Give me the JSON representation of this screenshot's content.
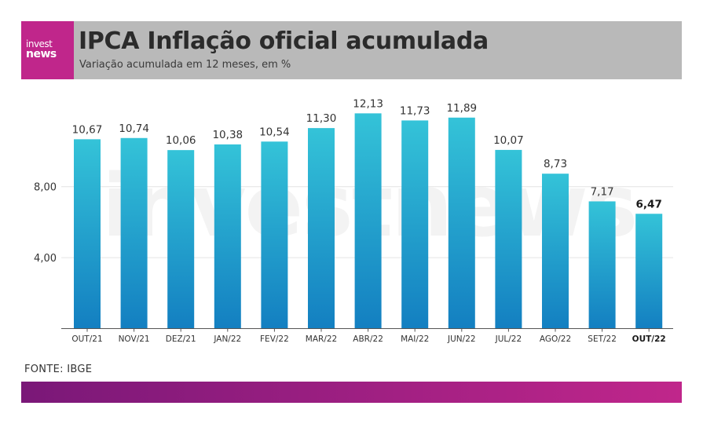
{
  "brand": {
    "logo_line1": "invest",
    "logo_line2": "news",
    "color": "#c0268b"
  },
  "header": {
    "title": "IPCA Inflação oficial acumulada",
    "subtitle": "Variação acumulada em 12 meses, em %",
    "background": "#b9b9b9"
  },
  "chart_data": {
    "type": "bar",
    "title": "IPCA Inflação oficial acumulada",
    "subtitle": "Variação acumulada em 12 meses, em %",
    "categories": [
      "OUT/21",
      "NOV/21",
      "DEZ/21",
      "JAN/22",
      "FEV/22",
      "MAR/22",
      "ABR/22",
      "MAI/22",
      "JUN/22",
      "JUL/22",
      "AGO/22",
      "SET/22",
      "OUT/22"
    ],
    "values": [
      10.67,
      10.74,
      10.06,
      10.38,
      10.54,
      11.3,
      12.13,
      11.73,
      11.89,
      10.07,
      8.73,
      7.17,
      6.47
    ],
    "value_labels": [
      "10,67",
      "10,74",
      "10,06",
      "10,38",
      "10,54",
      "11,30",
      "12,13",
      "11,73",
      "11,89",
      "10,07",
      "8,73",
      "7,17",
      "6,47"
    ],
    "highlight_index": 12,
    "yticks": [
      4,
      8
    ],
    "ytick_labels": [
      "4,00",
      "8,00"
    ],
    "ylim": [
      0,
      14
    ],
    "grid": true,
    "legend": "none",
    "bar_color_top": "#34c3d8",
    "bar_color_bottom": "#137fc1",
    "watermark": "investnews"
  },
  "source": "FONTE: IBGE",
  "footer": {
    "gradient_start": "#7a1878",
    "gradient_end": "#c0268b"
  }
}
